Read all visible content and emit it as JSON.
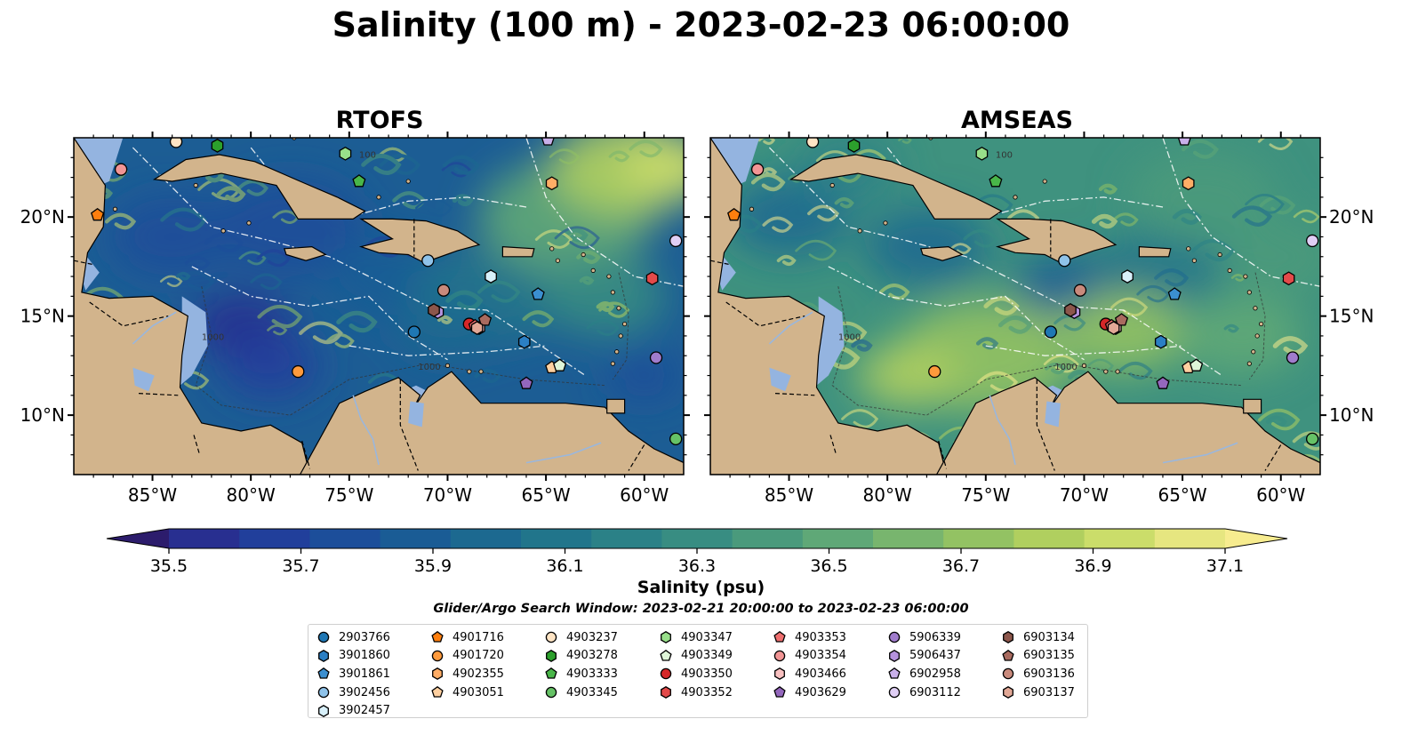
{
  "title": "Salinity (100 m) - 2023-02-23 06:00:00",
  "panels": [
    {
      "title": "RTOFS",
      "model": "rtofs"
    },
    {
      "title": "AMSEAS",
      "model": "amseas"
    }
  ],
  "map": {
    "lon_range": [
      -89,
      -58
    ],
    "lat_range": [
      7,
      24
    ],
    "lon_ticks": [
      {
        "value": -85,
        "label": "85°W"
      },
      {
        "value": -80,
        "label": "80°W"
      },
      {
        "value": -75,
        "label": "75°W"
      },
      {
        "value": -70,
        "label": "70°W"
      },
      {
        "value": -65,
        "label": "65°W"
      },
      {
        "value": -60,
        "label": "60°W"
      }
    ],
    "lat_ticks": [
      {
        "value": 20,
        "label": "20°N"
      },
      {
        "value": 15,
        "label": "15°N"
      },
      {
        "value": 10,
        "label": "10°N"
      }
    ],
    "land_color": "#d2b48c",
    "ocean_outside_color": "#94b4e0",
    "contour_labels": [
      "1000",
      "1000",
      "100"
    ]
  },
  "colorbar": {
    "label": "Salinity (psu)",
    "min": 35.5,
    "max": 37.1,
    "step": 0.1,
    "ticks": [
      {
        "value": 35.5,
        "label": "35.5"
      },
      {
        "value": 35.7,
        "label": "35.7"
      },
      {
        "value": 35.9,
        "label": "35.9"
      },
      {
        "value": 36.1,
        "label": "36.1"
      },
      {
        "value": 36.3,
        "label": "36.3"
      },
      {
        "value": 36.5,
        "label": "36.5"
      },
      {
        "value": 36.7,
        "label": "36.7"
      },
      {
        "value": 36.9,
        "label": "36.9"
      },
      {
        "value": 37.1,
        "label": "37.1"
      }
    ],
    "colors": [
      "#2c1c6c",
      "#282f90",
      "#213f9b",
      "#1c4e9a",
      "#1a5c95",
      "#1c6990",
      "#21758b",
      "#2b8187",
      "#388d82",
      "#4a9a7c",
      "#5fa877",
      "#78b56e",
      "#93c263",
      "#b0cf5f",
      "#cbdd6a",
      "#e6e680",
      "#f7ec8f"
    ]
  },
  "search_window": "Glider/Argo Search Window: 2023-02-21 20:00:00 to 2023-02-23 06:00:00",
  "floats": [
    {
      "id": "2903766",
      "color": "#1f77b4",
      "marker": "circle",
      "lon": -71.7,
      "lat": 14.2
    },
    {
      "id": "3901860",
      "color": "#2b7fc4",
      "marker": "hexagon",
      "lon": -66.1,
      "lat": 13.7
    },
    {
      "id": "3901861",
      "color": "#3b8fd0",
      "marker": "pentagon",
      "lon": -65.4,
      "lat": 16.1
    },
    {
      "id": "3902456",
      "color": "#8fc3ea",
      "marker": "circle",
      "lon": -71.0,
      "lat": 17.8
    },
    {
      "id": "3902457",
      "color": "#d8f0fa",
      "marker": "hexagon",
      "lon": -67.8,
      "lat": 17.0
    },
    {
      "id": "4901716",
      "color": "#ff7f0e",
      "marker": "pentagon",
      "lon": -87.8,
      "lat": 20.1
    },
    {
      "id": "4901720",
      "color": "#ff9a3c",
      "marker": "circle",
      "lon": -77.6,
      "lat": 12.2
    },
    {
      "id": "4902355",
      "color": "#ffad66",
      "marker": "hexagon",
      "lon": -64.7,
      "lat": 21.7
    },
    {
      "id": "4903051",
      "color": "#ffd0a0",
      "marker": "pentagon",
      "lon": -64.7,
      "lat": 12.4
    },
    {
      "id": "4903237",
      "color": "#ffe4c4",
      "marker": "circle",
      "lon": -83.8,
      "lat": 23.8
    },
    {
      "id": "4903278",
      "color": "#2ca02c",
      "marker": "hexagon",
      "lon": -81.7,
      "lat": 23.6
    },
    {
      "id": "4903333",
      "color": "#49b649",
      "marker": "pentagon",
      "lon": -74.5,
      "lat": 21.8
    },
    {
      "id": "4903345",
      "color": "#66c266",
      "marker": "circle",
      "lon": -58.4,
      "lat": 8.8
    },
    {
      "id": "4903347",
      "color": "#98df8a",
      "marker": "hexagon",
      "lon": -75.2,
      "lat": 23.2
    },
    {
      "id": "4903349",
      "color": "#dff5d8",
      "marker": "pentagon",
      "lon": -64.3,
      "lat": 12.5
    },
    {
      "id": "4903350",
      "color": "#d62728",
      "marker": "circle",
      "lon": -68.9,
      "lat": 14.6
    },
    {
      "id": "4903352",
      "color": "#e34a4a",
      "marker": "hexagon",
      "lon": -59.6,
      "lat": 16.9
    },
    {
      "id": "4903353",
      "color": "#ef6f6f",
      "marker": "pentagon",
      "lon": -68.6,
      "lat": 14.5
    },
    {
      "id": "4903354",
      "color": "#f29595",
      "marker": "circle",
      "lon": -86.6,
      "lat": 22.4
    },
    {
      "id": "4903466",
      "color": "#f8c0c0",
      "marker": "hexagon",
      "lon": -68.4,
      "lat": 14.4
    },
    {
      "id": "4903629",
      "color": "#9467bd",
      "marker": "pentagon",
      "lon": -66.0,
      "lat": 11.6
    },
    {
      "id": "5906339",
      "color": "#a07ccc",
      "marker": "circle",
      "lon": -59.4,
      "lat": 12.9
    },
    {
      "id": "5906437",
      "color": "#b592dd",
      "marker": "hexagon",
      "lon": -70.5,
      "lat": 15.2
    },
    {
      "id": "6902958",
      "color": "#c9b0ea",
      "marker": "pentagon",
      "lon": -64.9,
      "lat": 23.9
    },
    {
      "id": "6903112",
      "color": "#e0cff5",
      "marker": "circle",
      "lon": -58.4,
      "lat": 18.8
    },
    {
      "id": "6903134",
      "color": "#8c564b",
      "marker": "hexagon",
      "lon": -70.7,
      "lat": 15.3
    },
    {
      "id": "6903135",
      "color": "#a96b5f",
      "marker": "pentagon",
      "lon": -68.1,
      "lat": 14.8
    },
    {
      "id": "6903136",
      "color": "#c98a7c",
      "marker": "circle",
      "lon": -70.2,
      "lat": 16.3
    },
    {
      "id": "6903137",
      "color": "#e2a896",
      "marker": "hexagon",
      "lon": -68.5,
      "lat": 14.4
    }
  ]
}
